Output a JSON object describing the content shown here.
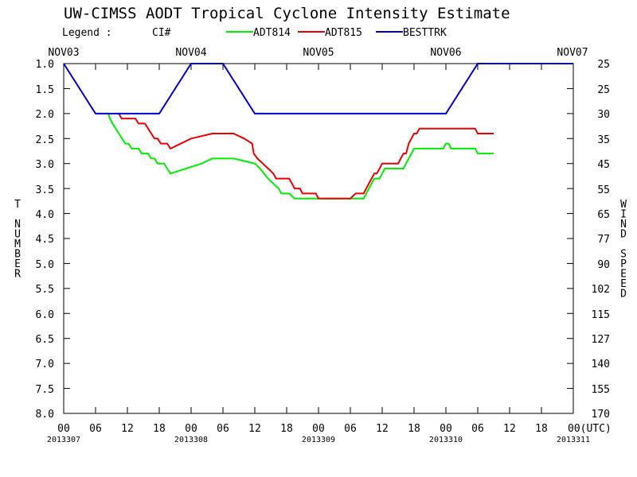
{
  "chart_data": {
    "type": "line",
    "title": "UW-CIMSS AODT Tropical Cyclone Intensity Estimate",
    "legend": {
      "label": "Legend :",
      "ci_label": "CI#",
      "entries": [
        "ADT814",
        "ADT815",
        "BESTTRK"
      ]
    },
    "top_axis_labels": [
      "NOV03",
      "NOV04",
      "NOV05",
      "NOV06",
      "NOV07"
    ],
    "x_tick_labels": [
      "00",
      "06",
      "12",
      "18",
      "00",
      "06",
      "12",
      "18",
      "00",
      "06",
      "12",
      "18",
      "00",
      "06",
      "12",
      "18",
      "00(UTC)"
    ],
    "x_date_labels": [
      "2013307",
      "2013308",
      "2013309",
      "2013310",
      "2013311"
    ],
    "xlim_hours": [
      0,
      96
    ],
    "y_left_label": "T NUMBER",
    "y_right_label": "WIND SPEED",
    "y_left_ticks": [
      "1.0",
      "1.5",
      "2.0",
      "2.5",
      "3.0",
      "3.5",
      "4.0",
      "4.5",
      "5.0",
      "5.5",
      "6.0",
      "6.5",
      "7.0",
      "7.5",
      "8.0"
    ],
    "y_right_ticks": [
      "25",
      "25",
      "30",
      "35",
      "45",
      "55",
      "65",
      "77",
      "90",
      "102",
      "115",
      "127",
      "140",
      "155",
      "170"
    ],
    "ylim": [
      1.0,
      8.0
    ],
    "y_inverted": true,
    "series": [
      {
        "name": "ADT814",
        "color": "#00ee00",
        "points": [
          [
            8.4,
            2.0
          ],
          [
            8.7,
            2.1
          ],
          [
            9.2,
            2.2
          ],
          [
            9.8,
            2.3
          ],
          [
            10.4,
            2.4
          ],
          [
            11.0,
            2.5
          ],
          [
            11.6,
            2.6
          ],
          [
            12.2,
            2.6
          ],
          [
            12.8,
            2.7
          ],
          [
            13.5,
            2.7
          ],
          [
            14.1,
            2.7
          ],
          [
            14.7,
            2.8
          ],
          [
            15.3,
            2.8
          ],
          [
            15.9,
            2.8
          ],
          [
            16.5,
            2.9
          ],
          [
            17.1,
            2.9
          ],
          [
            17.7,
            3.0
          ],
          [
            18.3,
            3.0
          ],
          [
            18.9,
            3.0
          ],
          [
            19.5,
            3.1
          ],
          [
            20.1,
            3.2
          ],
          [
            26.0,
            3.0
          ],
          [
            28.0,
            2.9
          ],
          [
            32.0,
            2.9
          ],
          [
            36.0,
            3.0
          ],
          [
            37.0,
            3.1
          ],
          [
            38.5,
            3.3
          ],
          [
            39.5,
            3.4
          ],
          [
            40.5,
            3.5
          ],
          [
            41.0,
            3.6
          ],
          [
            42.5,
            3.6
          ],
          [
            43.5,
            3.7
          ],
          [
            45.0,
            3.7
          ],
          [
            50.0,
            3.7
          ],
          [
            54.0,
            3.7
          ],
          [
            56.5,
            3.7
          ],
          [
            57.0,
            3.6
          ],
          [
            57.5,
            3.5
          ],
          [
            58.0,
            3.4
          ],
          [
            58.5,
            3.3
          ],
          [
            59.5,
            3.3
          ],
          [
            60.0,
            3.2
          ],
          [
            60.5,
            3.1
          ],
          [
            62.0,
            3.1
          ],
          [
            63.0,
            3.1
          ],
          [
            64.0,
            3.1
          ],
          [
            64.5,
            3.0
          ],
          [
            65.0,
            2.9
          ],
          [
            65.5,
            2.8
          ],
          [
            66.0,
            2.7
          ],
          [
            68.0,
            2.7
          ],
          [
            70.0,
            2.7
          ],
          [
            71.5,
            2.7
          ],
          [
            72.0,
            2.6
          ],
          [
            72.5,
            2.6
          ],
          [
            73.0,
            2.7
          ],
          [
            75.0,
            2.7
          ],
          [
            77.5,
            2.7
          ],
          [
            78.0,
            2.8
          ],
          [
            81.0,
            2.8
          ]
        ]
      },
      {
        "name": "ADT815",
        "color": "#ee0000",
        "points": [
          [
            10.4,
            2.0
          ],
          [
            10.9,
            2.1
          ],
          [
            12.2,
            2.1
          ],
          [
            13.5,
            2.1
          ],
          [
            14.1,
            2.2
          ],
          [
            15.3,
            2.2
          ],
          [
            15.9,
            2.3
          ],
          [
            16.5,
            2.4
          ],
          [
            17.1,
            2.5
          ],
          [
            17.7,
            2.5
          ],
          [
            18.3,
            2.6
          ],
          [
            19.5,
            2.6
          ],
          [
            20.1,
            2.7
          ],
          [
            24.0,
            2.5
          ],
          [
            28.0,
            2.4
          ],
          [
            32.0,
            2.4
          ],
          [
            34.0,
            2.5
          ],
          [
            35.5,
            2.6
          ],
          [
            35.8,
            2.8
          ],
          [
            36.5,
            2.9
          ],
          [
            37.5,
            3.0
          ],
          [
            38.5,
            3.1
          ],
          [
            39.5,
            3.2
          ],
          [
            40.0,
            3.3
          ],
          [
            42.5,
            3.3
          ],
          [
            43.0,
            3.4
          ],
          [
            43.5,
            3.5
          ],
          [
            44.5,
            3.5
          ],
          [
            45.0,
            3.6
          ],
          [
            47.5,
            3.6
          ],
          [
            48.0,
            3.7
          ],
          [
            52.0,
            3.7
          ],
          [
            54.0,
            3.7
          ],
          [
            55.0,
            3.6
          ],
          [
            56.5,
            3.6
          ],
          [
            57.0,
            3.5
          ],
          [
            57.5,
            3.4
          ],
          [
            58.0,
            3.3
          ],
          [
            58.5,
            3.2
          ],
          [
            59.0,
            3.2
          ],
          [
            59.5,
            3.1
          ],
          [
            60.0,
            3.0
          ],
          [
            61.0,
            3.0
          ],
          [
            63.0,
            3.0
          ],
          [
            63.5,
            2.9
          ],
          [
            64.0,
            2.8
          ],
          [
            64.5,
            2.8
          ],
          [
            65.0,
            2.6
          ],
          [
            65.5,
            2.5
          ],
          [
            66.0,
            2.4
          ],
          [
            66.5,
            2.4
          ],
          [
            67.0,
            2.3
          ],
          [
            70.0,
            2.3
          ],
          [
            74.0,
            2.3
          ],
          [
            76.0,
            2.3
          ],
          [
            77.5,
            2.3
          ],
          [
            78.0,
            2.4
          ],
          [
            81.0,
            2.4
          ]
        ]
      },
      {
        "name": "BESTTRK",
        "color": "#0000cc",
        "points": [
          [
            0,
            1.0
          ],
          [
            6,
            2.0
          ],
          [
            18,
            2.0
          ],
          [
            24,
            1.0
          ],
          [
            30,
            1.0
          ],
          [
            36,
            2.0
          ],
          [
            48,
            2.0
          ],
          [
            60,
            2.0
          ],
          [
            72,
            2.0
          ],
          [
            78,
            1.0
          ],
          [
            96,
            1.0
          ]
        ]
      }
    ]
  }
}
